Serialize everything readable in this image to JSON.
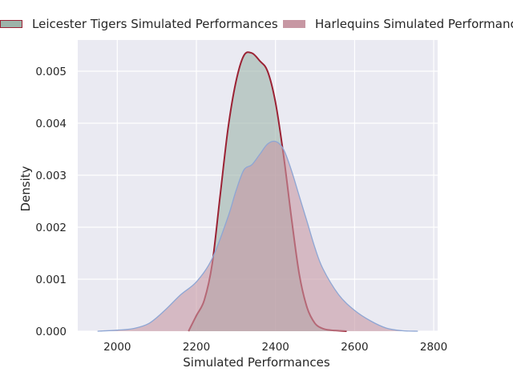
{
  "chart_data": {
    "type": "area",
    "xlabel": "Simulated Performances",
    "ylabel": "Density",
    "xlim": [
      1900,
      2810
    ],
    "ylim": [
      0,
      0.0056
    ],
    "xticks": [
      2000,
      2200,
      2400,
      2600,
      2800
    ],
    "xtick_labels": [
      "2000",
      "2200",
      "2400",
      "2600",
      "2800"
    ],
    "yticks": [
      0,
      0.001,
      0.002,
      0.003,
      0.004,
      0.005
    ],
    "ytick_labels": [
      "0.000",
      "0.001",
      "0.002",
      "0.003",
      "0.004",
      "0.005"
    ],
    "grid": true,
    "legend_position": "top",
    "series": [
      {
        "name": "Leicester Tigers Simulated Performances",
        "fill": "#9db4aa",
        "line": "#9b2234",
        "x": [
          2180,
          2200,
          2220,
          2240,
          2260,
          2280,
          2300,
          2320,
          2340,
          2360,
          2380,
          2400,
          2420,
          2440,
          2460,
          2480,
          2500,
          2520,
          2540,
          2560,
          2580
        ],
        "y": [
          0.0,
          0.0003,
          0.0006,
          0.0013,
          0.0026,
          0.0039,
          0.0048,
          0.0053,
          0.00535,
          0.0052,
          0.005,
          0.0044,
          0.0034,
          0.0022,
          0.0011,
          0.00045,
          0.00015,
          5e-05,
          2e-05,
          1e-05,
          0.0
        ]
      },
      {
        "name": "Harlequins Simulated Performances",
        "fill": "#c797a3",
        "line": "#8ea6d4",
        "x": [
          1950,
          2000,
          2040,
          2080,
          2120,
          2160,
          2200,
          2240,
          2280,
          2300,
          2320,
          2340,
          2360,
          2380,
          2400,
          2420,
          2440,
          2460,
          2480,
          2500,
          2520,
          2560,
          2600,
          2640,
          2680,
          2720,
          2760
        ],
        "y": [
          0.0,
          2e-05,
          5e-05,
          0.00015,
          0.0004,
          0.0007,
          0.00095,
          0.0014,
          0.0022,
          0.0027,
          0.0031,
          0.0032,
          0.0034,
          0.0036,
          0.00365,
          0.0035,
          0.0031,
          0.0026,
          0.0021,
          0.0016,
          0.0012,
          0.0007,
          0.0004,
          0.0002,
          6e-05,
          1e-05,
          0.0
        ]
      }
    ]
  }
}
